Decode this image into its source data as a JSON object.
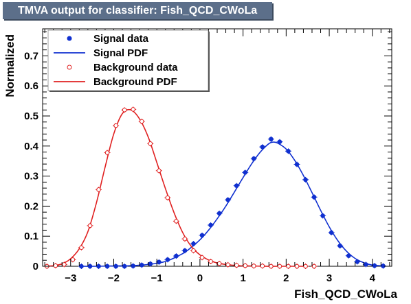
{
  "header": {
    "title": "TMVA output for classifier: Fish_QCD_CWoLa"
  },
  "colors": {
    "signal": "#1030d0",
    "background": "#e02020",
    "title_bg": "#5c6f8a"
  },
  "chart_data": {
    "type": "line",
    "title": "TMVA output for classifier: Fish_QCD_CWoLa",
    "xlabel": "Fish_QCD_CWoLa",
    "ylabel": "Normalized",
    "xlim": [
      -3.65,
      4.45
    ],
    "ylim": [
      0,
      0.79
    ],
    "xticks": [
      -3,
      -2,
      -1,
      0,
      1,
      2,
      3,
      4
    ],
    "yticks": [
      0,
      0.1,
      0.2,
      0.3,
      0.4,
      0.5,
      0.6,
      0.7
    ],
    "grid": false,
    "legend_position": "top-left",
    "legend": [
      {
        "key": "signal_data",
        "label": "Signal data"
      },
      {
        "key": "signal_pdf",
        "label": "Signal PDF"
      },
      {
        "key": "background_data",
        "label": "Background data"
      },
      {
        "key": "background_pdf",
        "label": "Background PDF"
      }
    ],
    "series": [
      {
        "key": "signal_data",
        "kind": "markers",
        "marker": "filled-circle",
        "x": [
          -2.75,
          -2.55,
          -2.35,
          -2.15,
          -1.95,
          -1.75,
          -1.55,
          -1.35,
          -1.15,
          -0.95,
          -0.75,
          -0.55,
          -0.35,
          -0.15,
          0.05,
          0.25,
          0.45,
          0.65,
          0.85,
          1.05,
          1.25,
          1.45,
          1.65,
          1.85,
          2.05,
          2.25,
          2.45,
          2.65,
          2.85,
          3.05,
          3.25,
          3.45,
          3.65,
          3.85,
          4.05,
          4.25
        ],
        "y": [
          0.0,
          0.0,
          0.0,
          0.0,
          0.0,
          0.0,
          0.001,
          0.004,
          0.008,
          0.014,
          0.022,
          0.034,
          0.052,
          0.075,
          0.103,
          0.137,
          0.176,
          0.221,
          0.268,
          0.312,
          0.358,
          0.397,
          0.423,
          0.414,
          0.383,
          0.339,
          0.288,
          0.23,
          0.168,
          0.112,
          0.068,
          0.035,
          0.015,
          0.006,
          0.002,
          0.001
        ]
      },
      {
        "key": "signal_pdf",
        "kind": "curve",
        "x": [
          -2.8,
          -2.4,
          -2.0,
          -1.6,
          -1.2,
          -0.8,
          -0.4,
          -0.2,
          0.0,
          0.2,
          0.4,
          0.6,
          0.8,
          1.0,
          1.2,
          1.4,
          1.6,
          1.7,
          1.8,
          2.0,
          2.2,
          2.4,
          2.6,
          2.8,
          3.0,
          3.2,
          3.4,
          3.6,
          3.8,
          4.0,
          4.3
        ],
        "y": [
          0.0,
          0.0,
          0.001,
          0.002,
          0.006,
          0.016,
          0.042,
          0.063,
          0.088,
          0.12,
          0.158,
          0.2,
          0.247,
          0.295,
          0.341,
          0.38,
          0.408,
          0.413,
          0.41,
          0.39,
          0.352,
          0.302,
          0.245,
          0.186,
          0.131,
          0.085,
          0.05,
          0.026,
          0.012,
          0.004,
          0.001
        ]
      },
      {
        "key": "background_data",
        "kind": "markers",
        "marker": "open-circle",
        "x": [
          -3.55,
          -3.35,
          -3.15,
          -2.95,
          -2.75,
          -2.55,
          -2.35,
          -2.15,
          -1.95,
          -1.75,
          -1.55,
          -1.35,
          -1.15,
          -0.95,
          -0.75,
          -0.55,
          -0.35,
          -0.15,
          0.05,
          0.25,
          0.45,
          0.65,
          0.85,
          1.05,
          1.25,
          1.45,
          1.65,
          1.85,
          2.05,
          2.25,
          2.45,
          2.65
        ],
        "y": [
          0.0,
          0.002,
          0.006,
          0.022,
          0.062,
          0.135,
          0.255,
          0.378,
          0.468,
          0.52,
          0.522,
          0.482,
          0.408,
          0.318,
          0.228,
          0.15,
          0.091,
          0.052,
          0.029,
          0.016,
          0.009,
          0.005,
          0.003,
          0.002,
          0.001,
          0.001,
          0.0,
          0.0,
          0.0,
          0.0,
          0.0,
          0.0
        ]
      },
      {
        "key": "background_pdf",
        "kind": "curve",
        "x": [
          -3.6,
          -3.4,
          -3.2,
          -3.0,
          -2.8,
          -2.6,
          -2.4,
          -2.2,
          -2.0,
          -1.8,
          -1.6,
          -1.4,
          -1.2,
          -1.0,
          -0.8,
          -0.6,
          -0.4,
          -0.2,
          0.0,
          0.2,
          0.4,
          0.6,
          0.8,
          1.0,
          1.2,
          1.5,
          1.8,
          2.4
        ],
        "y": [
          0.0,
          0.002,
          0.008,
          0.025,
          0.058,
          0.115,
          0.212,
          0.33,
          0.44,
          0.508,
          0.52,
          0.49,
          0.43,
          0.345,
          0.258,
          0.178,
          0.112,
          0.066,
          0.038,
          0.021,
          0.011,
          0.006,
          0.003,
          0.001,
          0.001,
          0.0,
          0.0,
          0.0
        ]
      }
    ]
  }
}
